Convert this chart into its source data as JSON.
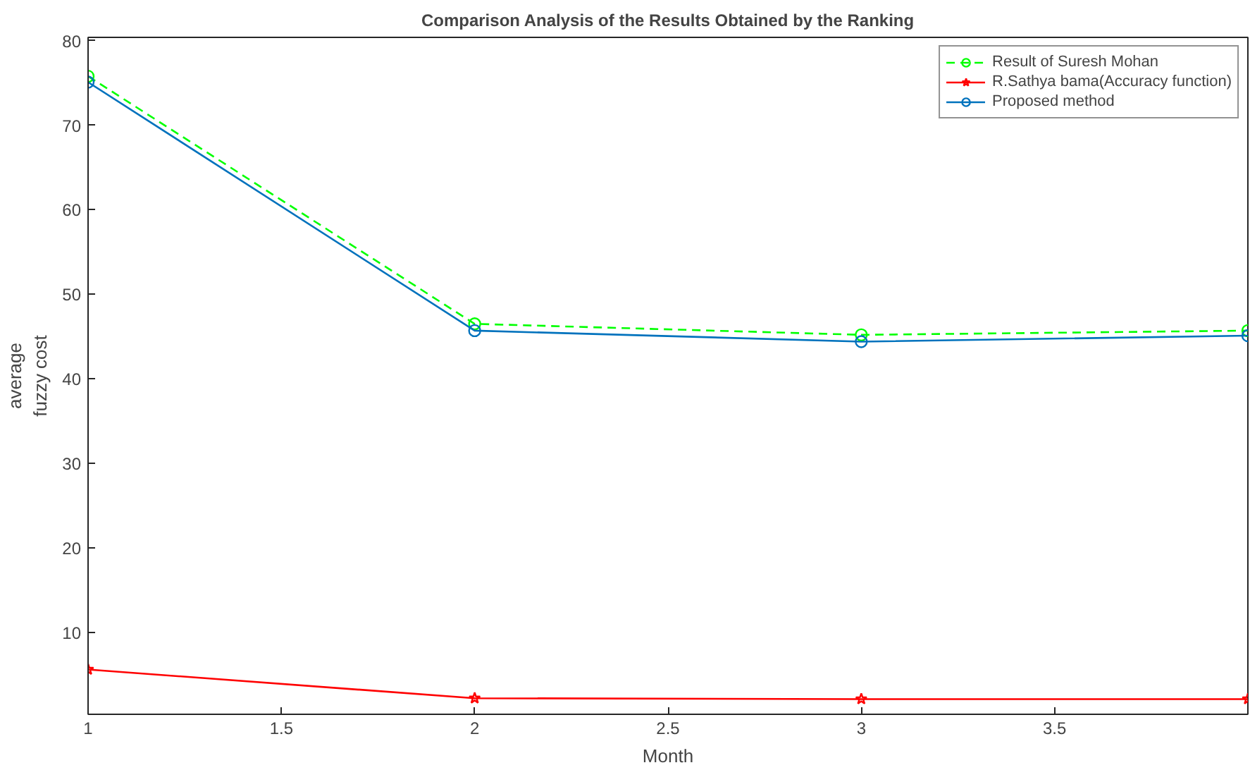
{
  "chart_data": {
    "type": "line",
    "title": "Comparison Analysis of the Results Obtained by the Ranking",
    "xlabel": "Month",
    "ylabel": "average\nfuzzy cost",
    "x": [
      1,
      2,
      3,
      4
    ],
    "xlim": [
      1,
      4
    ],
    "xticks": [
      1,
      1.5,
      2,
      2.5,
      3,
      3.5
    ],
    "ylim": [
      0.3,
      80.4
    ],
    "yticks": [
      10,
      20,
      30,
      40,
      50,
      60,
      70,
      80
    ],
    "grid": false,
    "legend": "top right",
    "series": [
      {
        "name": "Result of Suresh Mohan",
        "color": "#00ff00",
        "values": [
          75.8,
          46.5,
          45.2,
          45.7
        ],
        "marker": "circle",
        "line_style": "dashed"
      },
      {
        "name": "R.Sathya bama(Accuracy function)",
        "color": "#ff0000",
        "values": [
          5.6,
          2.2,
          2.1,
          2.1
        ],
        "marker": "star",
        "line_style": "solid"
      },
      {
        "name": "Proposed method",
        "color": "#0072bd",
        "values": [
          75.1,
          45.7,
          44.4,
          45.1
        ],
        "marker": "circle",
        "line_style": "solid"
      }
    ]
  }
}
